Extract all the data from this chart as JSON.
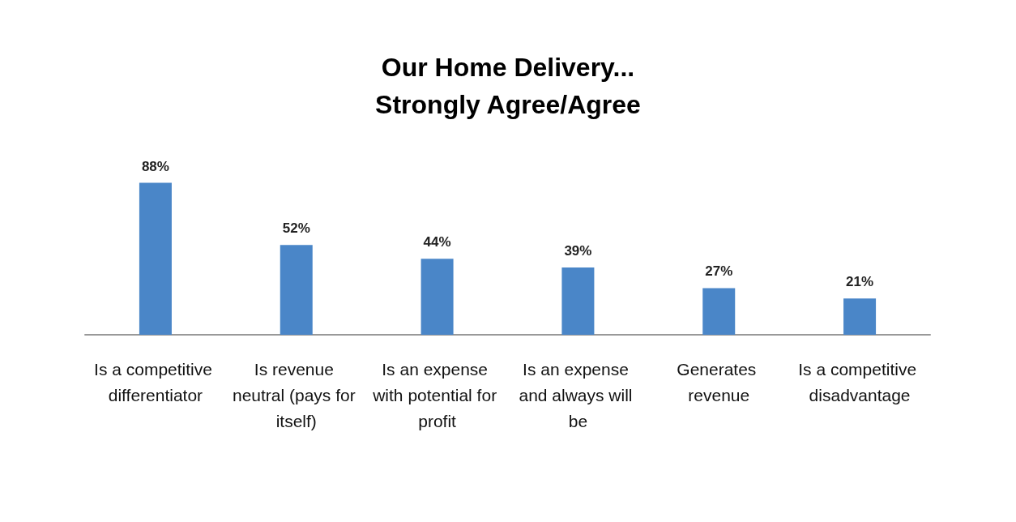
{
  "chart_data": {
    "type": "bar",
    "title": "Our Home Delivery...\nStrongly Agree/Agree",
    "categories": [
      "Is a competitive differentiator",
      "Is revenue neutral (pays for itself)",
      "Is an expense with potential for profit",
      "Is an expense and always will be",
      "Generates revenue",
      "Is a competitive disadvantage"
    ],
    "values": [
      88,
      52,
      44,
      39,
      27,
      21
    ],
    "value_labels": [
      "88%",
      "52%",
      "44%",
      "39%",
      "27%",
      "21%"
    ],
    "color": "#4a86c8"
  }
}
